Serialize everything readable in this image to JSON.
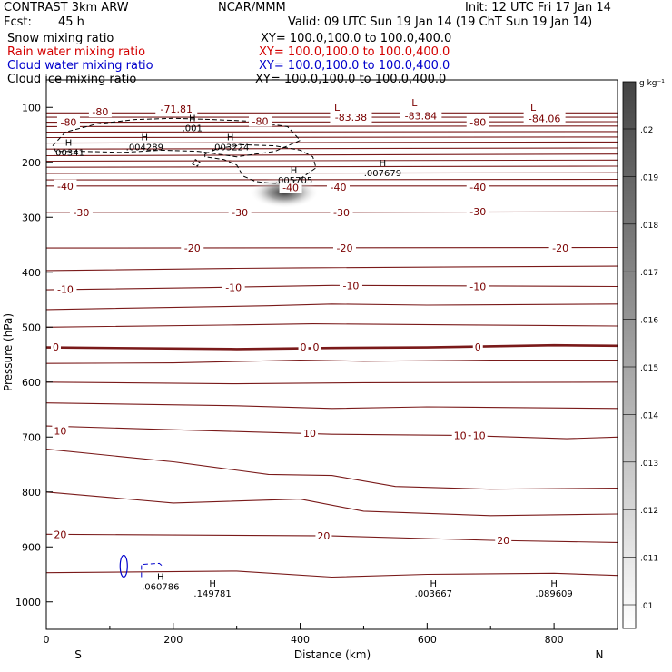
{
  "header": {
    "title_left": "CONTRAST  3km ARW",
    "title_center": "NCAR/MMM",
    "init": "Init: 12 UTC Fri 17 Jan 14",
    "fcst_label": "Fcst:",
    "fcst_value": "45 h",
    "valid": "Valid: 09 UTC Sun 19 Jan 14 (19 ChT Sun 19 Jan 14)",
    "fields": [
      {
        "name": "Snow mixing ratio",
        "xy": "XY= 100.0,100.0 to 100.0,400.0",
        "color": "#000000"
      },
      {
        "name": "Rain water mixing ratio",
        "xy": "XY= 100.0,100.0 to 100.0,400.0",
        "color": "#d40000"
      },
      {
        "name": "Cloud water mixing ratio",
        "xy": "XY= 100.0,100.0 to 100.0,400.0",
        "color": "#0000cc"
      },
      {
        "name": "Cloud ice mixing ratio",
        "xy": "XY= 100.0,100.0 to 100.0,400.0",
        "color": "#000000"
      }
    ]
  },
  "chart_data": {
    "type": "contour",
    "xlabel": "Distance (km)",
    "ylabel": "Pressure (hPa)",
    "xlim": [
      0,
      900
    ],
    "ylim": [
      1050,
      50
    ],
    "x_ticks": [
      0,
      200,
      400,
      600,
      800
    ],
    "y_ticks": [
      100,
      200,
      300,
      400,
      500,
      600,
      700,
      800,
      900,
      1000
    ],
    "x_end_labels": {
      "left": "S",
      "right": "N"
    },
    "colorbar": {
      "unit": "g kg⁻¹",
      "levels": [
        ".01",
        ".011",
        ".012",
        ".013",
        ".014",
        ".015",
        ".016",
        ".017",
        ".018",
        ".019",
        ".02"
      ]
    },
    "colors": {
      "temperature": "#7a1a1a",
      "cloud_ice": "#000000",
      "cloud_water": "#0000cc"
    },
    "temperature_labels": [
      {
        "text": "-80",
        "x": 85,
        "p": 108
      },
      {
        "text": "-80",
        "x": 35,
        "p": 127
      },
      {
        "text": "-80",
        "x": 337,
        "p": 125
      },
      {
        "text": "-80",
        "x": 680,
        "p": 127
      },
      {
        "text": "-71.81",
        "x": 205,
        "p": 103
      },
      {
        "text": "-83.38",
        "x": 480,
        "p": 118
      },
      {
        "text": "-83.84",
        "x": 590,
        "p": 115
      },
      {
        "text": "-84.06",
        "x": 785,
        "p": 120
      },
      {
        "text": "-40",
        "x": 30,
        "p": 243
      },
      {
        "text": "-40",
        "x": 385,
        "p": 246
      },
      {
        "text": "-40",
        "x": 460,
        "p": 245
      },
      {
        "text": "-40",
        "x": 680,
        "p": 245
      },
      {
        "text": "-30",
        "x": 55,
        "p": 291
      },
      {
        "text": "-30",
        "x": 305,
        "p": 291
      },
      {
        "text": "-30",
        "x": 465,
        "p": 291
      },
      {
        "text": "-30",
        "x": 680,
        "p": 290
      },
      {
        "text": "-20",
        "x": 230,
        "p": 356
      },
      {
        "text": "-20",
        "x": 470,
        "p": 356
      },
      {
        "text": "-20",
        "x": 810,
        "p": 356
      },
      {
        "text": "-10",
        "x": 30,
        "p": 431
      },
      {
        "text": "-10",
        "x": 295,
        "p": 428
      },
      {
        "text": "-10",
        "x": 480,
        "p": 424
      },
      {
        "text": "-10",
        "x": 680,
        "p": 426
      },
      {
        "text": "0",
        "x": 15,
        "p": 536
      },
      {
        "text": "0",
        "x": 405,
        "p": 536
      },
      {
        "text": "0",
        "x": 425,
        "p": 536
      },
      {
        "text": "0",
        "x": 680,
        "p": 536
      },
      {
        "text": "10",
        "x": 22,
        "p": 689
      },
      {
        "text": "10",
        "x": 415,
        "p": 693
      },
      {
        "text": "10",
        "x": 652,
        "p": 697
      },
      {
        "text": "10",
        "x": 682,
        "p": 697
      },
      {
        "text": "20",
        "x": 22,
        "p": 877
      },
      {
        "text": "20",
        "x": 437,
        "p": 880
      },
      {
        "text": "20",
        "x": 720,
        "p": 888
      }
    ],
    "maxima": [
      {
        "mark": "H",
        "value": ".00341",
        "x": 35,
        "p": 170,
        "color": "#000000"
      },
      {
        "mark": "H",
        "value": ".004289",
        "x": 155,
        "p": 160,
        "color": "#000000"
      },
      {
        "mark": "H",
        "value": ".003224",
        "x": 290,
        "p": 160,
        "color": "#000000"
      },
      {
        "mark": "H",
        "value": ".001",
        "x": 230,
        "p": 125,
        "color": "#000000"
      },
      {
        "mark": "H",
        "value": ".005705",
        "x": 390,
        "p": 220,
        "color": "#000000"
      },
      {
        "mark": "H",
        "value": ".007679",
        "x": 530,
        "p": 207,
        "color": "#000000"
      },
      {
        "mark": "H",
        "value": ".060786",
        "x": 180,
        "p": 960,
        "color": "#0000cc"
      },
      {
        "mark": "H",
        "value": ".149781",
        "x": 262,
        "p": 972,
        "color": "#0000cc"
      },
      {
        "mark": "H",
        "value": ".003667",
        "x": 610,
        "p": 972,
        "color": "#0000cc"
      },
      {
        "mark": "H",
        "value": ".089609",
        "x": 800,
        "p": 972,
        "color": "#0000cc"
      }
    ],
    "minima": [
      {
        "mark": "L",
        "x": 458,
        "p": 106
      },
      {
        "mark": "L",
        "x": 580,
        "p": 98
      },
      {
        "mark": "L",
        "x": 767,
        "p": 106
      }
    ],
    "shaded_maximum": {
      "x": 375,
      "p": 255,
      "value": ".005705"
    }
  }
}
